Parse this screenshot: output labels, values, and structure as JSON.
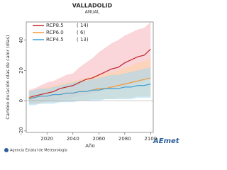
{
  "chart_data": {
    "type": "line",
    "title": "VALLADOLID",
    "subtitle": "ANUAL",
    "y_label": "Cambio duración olas de calor (días)",
    "x_label": "Año",
    "footer": "Agencia Estatal de Meteorología",
    "logo": "AEmet",
    "x": [
      2006,
      2010,
      2015,
      2020,
      2025,
      2030,
      2035,
      2040,
      2045,
      2050,
      2055,
      2060,
      2065,
      2070,
      2075,
      2080,
      2085,
      2090,
      2095,
      2100
    ],
    "xlim": [
      2004,
      2102
    ],
    "xticks": [
      2020,
      2040,
      2060,
      2080,
      2100
    ],
    "ylim": [
      -21,
      52
    ],
    "yticks": [
      -20,
      0,
      20,
      40
    ],
    "series": [
      {
        "name": "RCP8.5",
        "models": "( 14)",
        "color": "#c0262d",
        "band_color": "#f6b9bf",
        "values": [
          2,
          3,
          4,
          5,
          6,
          8,
          9,
          10,
          12,
          14,
          15,
          17,
          19,
          21,
          22,
          25,
          27,
          29,
          30,
          34
        ],
        "upper": [
          7,
          8,
          10,
          12,
          13,
          15,
          17,
          18,
          22,
          25,
          28,
          32,
          35,
          38,
          40,
          43,
          45,
          47,
          48,
          52
        ],
        "lower": [
          -2,
          -2,
          -1,
          0,
          0,
          1,
          1,
          2,
          3,
          4,
          5,
          6,
          7,
          8,
          9,
          10,
          11,
          12,
          13,
          15
        ]
      },
      {
        "name": "RCP6.0",
        "models": "( 6)",
        "color": "#f29a3a",
        "band_color": "#fbd3a6",
        "values": [
          2,
          2,
          3,
          3,
          4,
          4,
          5,
          5,
          6,
          6,
          7,
          8,
          8,
          9,
          10,
          11,
          12,
          13,
          14,
          15
        ],
        "upper": [
          6,
          7,
          8,
          9,
          10,
          11,
          12,
          13,
          14,
          15,
          16,
          17,
          18,
          19,
          20,
          22,
          23,
          25,
          26,
          28
        ],
        "lower": [
          -2,
          -2,
          -2,
          -1,
          -1,
          -1,
          0,
          0,
          0,
          0,
          1,
          1,
          1,
          1,
          2,
          2,
          2,
          3,
          3,
          3
        ]
      },
      {
        "name": "RCP4.5",
        "models": "( 13)",
        "color": "#3f9fd4",
        "band_color": "#aad9ef",
        "values": [
          1,
          2,
          3,
          3,
          4,
          4,
          5,
          5,
          6,
          6,
          7,
          7,
          8,
          8,
          8,
          9,
          9,
          10,
          10,
          11
        ],
        "upper": [
          6,
          7,
          8,
          8,
          9,
          10,
          11,
          12,
          13,
          13,
          14,
          15,
          16,
          17,
          17,
          18,
          19,
          20,
          21,
          22
        ],
        "lower": [
          -3,
          -3,
          -2,
          -2,
          -2,
          -1,
          -1,
          -1,
          0,
          0,
          0,
          0,
          1,
          1,
          1,
          1,
          1,
          2,
          2,
          2
        ]
      }
    ]
  }
}
